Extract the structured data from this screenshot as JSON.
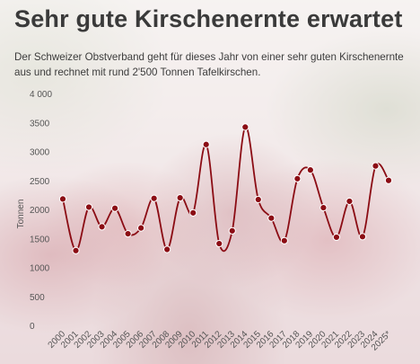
{
  "header": {
    "title": "Sehr gute Kirschenernte erwartet",
    "subtitle": "Der Schweizer Obstverband geht für dieses Jahr von einer sehr guten Kirschenernte aus und rechnet mit rund 2'500 Tonnen Tafelkirschen."
  },
  "colors": {
    "line": "#8b0c14",
    "marker_fill": "#8b0c14",
    "marker_stroke": "#ffffff"
  },
  "chart_data": {
    "type": "line",
    "title": "",
    "xlabel": "",
    "ylabel": "Tonnen",
    "ylim": [
      0,
      4000
    ],
    "yticks": [
      0,
      500,
      1000,
      1500,
      2000,
      2500,
      3000,
      3500,
      4000
    ],
    "ytick_labels": [
      "0",
      "500",
      "1000",
      "1500",
      "2000",
      "2500",
      "3000",
      "3500",
      "4 000"
    ],
    "grid": false,
    "smooth": true,
    "categories": [
      "2000",
      "2001",
      "2002",
      "2003",
      "2004",
      "2005",
      "2006",
      "2007",
      "2008",
      "2009",
      "2010",
      "2011",
      "2012",
      "2013",
      "2014",
      "2015",
      "2016",
      "2017",
      "2018",
      "2019",
      "2020",
      "2021",
      "2022",
      "2023",
      "2024",
      "2025*"
    ],
    "values": [
      2180,
      1290,
      2040,
      1700,
      2020,
      1580,
      1680,
      2190,
      1310,
      2200,
      1940,
      3120,
      1410,
      1630,
      3420,
      2170,
      1850,
      1460,
      2530,
      2680,
      2030,
      1520,
      2140,
      1530,
      2750,
      2500
    ]
  }
}
